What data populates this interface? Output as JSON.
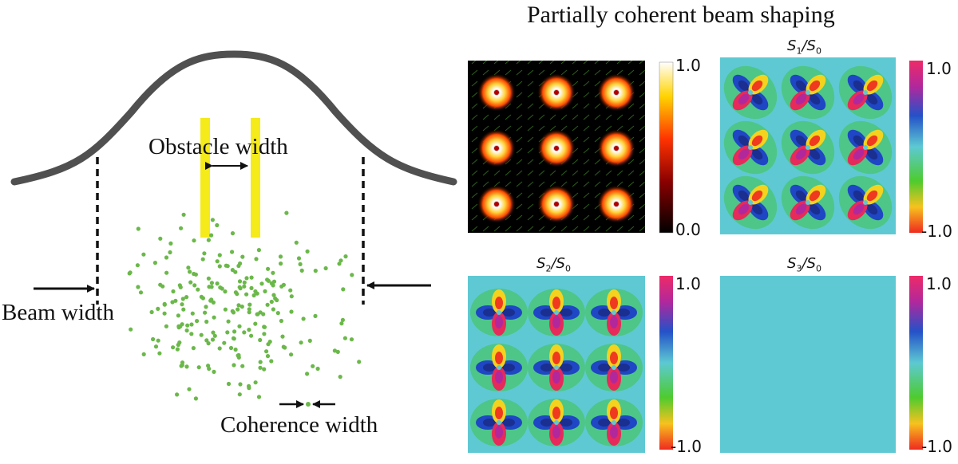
{
  "title": "Partially coherent beam shaping",
  "diagram": {
    "obstacle_label": "Obstacle width",
    "beam_label": "Beam width",
    "coherence_label": "Coherence width",
    "colors": {
      "curve": "#505050",
      "obstacle": "#f5ea1a",
      "particles": "#6bb84a"
    }
  },
  "panels": [
    {
      "id": "intensity",
      "title_main": "",
      "title_sub": "",
      "den_main": "",
      "den_sub": "",
      "cb_max": "1.0",
      "cb_min": "0.0",
      "colormap": "hot"
    },
    {
      "id": "s1",
      "title_main": "S",
      "title_sub": "1",
      "den_main": "S",
      "den_sub": "0",
      "cb_max": "1.0",
      "cb_min": "-1.0",
      "colormap": "rainbow"
    },
    {
      "id": "s2",
      "title_main": "S",
      "title_sub": "2",
      "den_main": "S",
      "den_sub": "0",
      "cb_max": "1.0",
      "cb_min": "-1.0",
      "colormap": "rainbow"
    },
    {
      "id": "s3",
      "title_main": "S",
      "title_sub": "3",
      "den_main": "S",
      "den_sub": "0",
      "cb_max": "1.0",
      "cb_min": "-1.0",
      "colormap": "rainbow"
    }
  ]
}
